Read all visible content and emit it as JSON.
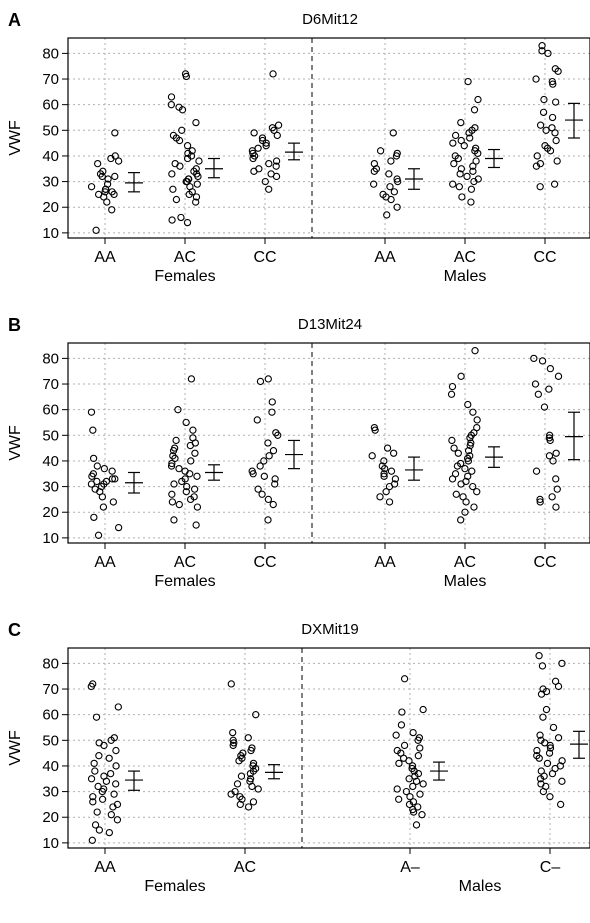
{
  "chart_data": [
    {
      "type": "scatter",
      "panel": "A",
      "title": "D6Mit12",
      "ylabel": "VWF",
      "ylim": [
        10,
        85
      ],
      "yticks": [
        10,
        20,
        30,
        40,
        50,
        60,
        70,
        80
      ],
      "grid": true,
      "groups": [
        {
          "label": "Females",
          "categories": [
            "AA",
            "AC",
            "CC"
          ]
        },
        {
          "label": "Males",
          "categories": [
            "AA",
            "AC",
            "CC"
          ]
        }
      ],
      "series": [
        {
          "group": "Females",
          "category": "AA",
          "mean": 29.5,
          "ci": [
            26,
            33.5
          ],
          "points": [
            11,
            19,
            22,
            24,
            25,
            25,
            26,
            26,
            27,
            27,
            28,
            29,
            31,
            32,
            32,
            33,
            34,
            37,
            38,
            39,
            40,
            49
          ]
        },
        {
          "group": "Females",
          "category": "AC",
          "mean": 35,
          "ci": [
            31.5,
            39
          ],
          "points": [
            14,
            15,
            16,
            22,
            23,
            24,
            25,
            26,
            27,
            28,
            29,
            30,
            30,
            31,
            31,
            32,
            33,
            33,
            34,
            35,
            36,
            37,
            38,
            39,
            40,
            41,
            42,
            44,
            46,
            47,
            48,
            50,
            53,
            58,
            59,
            60,
            63,
            71,
            72
          ]
        },
        {
          "group": "Females",
          "category": "CC",
          "mean": 41.5,
          "ci": [
            38.5,
            45
          ],
          "points": [
            27,
            30,
            32,
            33,
            34,
            35,
            36,
            37,
            38,
            39,
            40,
            41,
            42,
            43,
            44,
            45,
            46,
            47,
            48,
            49,
            50,
            51,
            52,
            72
          ]
        },
        {
          "group": "Males",
          "category": "AA",
          "mean": 31,
          "ci": [
            27,
            35
          ],
          "points": [
            17,
            20,
            23,
            24,
            25,
            26,
            28,
            29,
            30,
            31,
            33,
            34,
            35,
            37,
            38,
            40,
            41,
            42,
            49
          ]
        },
        {
          "group": "Males",
          "category": "AC",
          "mean": 39,
          "ci": [
            35.5,
            42.5
          ],
          "points": [
            22,
            24,
            27,
            28,
            29,
            30,
            31,
            32,
            33,
            34,
            35,
            36,
            37,
            38,
            39,
            40,
            41,
            42,
            43,
            44,
            45,
            46,
            47,
            48,
            49,
            50,
            51,
            53,
            58,
            62,
            69
          ]
        },
        {
          "group": "Males",
          "category": "CC",
          "mean": 54,
          "ci": [
            47,
            60.5
          ],
          "points": [
            28,
            29,
            36,
            37,
            38,
            40,
            42,
            43,
            44,
            46,
            49,
            50,
            51,
            52,
            55,
            57,
            61,
            62,
            68,
            69,
            70,
            73,
            74,
            80,
            81,
            83
          ]
        }
      ]
    },
    {
      "type": "scatter",
      "panel": "B",
      "title": "D13Mit24",
      "ylabel": "VWF",
      "ylim": [
        10,
        85
      ],
      "yticks": [
        10,
        20,
        30,
        40,
        50,
        60,
        70,
        80
      ],
      "grid": true,
      "groups": [
        {
          "label": "Females",
          "categories": [
            "AA",
            "AC",
            "CC"
          ]
        },
        {
          "label": "Males",
          "categories": [
            "AA",
            "AC",
            "CC"
          ]
        }
      ],
      "series": [
        {
          "group": "Females",
          "category": "AA",
          "mean": 31.5,
          "ci": [
            27.5,
            35.5
          ],
          "points": [
            11,
            14,
            18,
            22,
            24,
            26,
            28,
            29,
            30,
            31,
            31,
            32,
            32,
            33,
            33,
            34,
            35,
            36,
            37,
            38,
            41,
            52,
            59
          ]
        },
        {
          "group": "Females",
          "category": "AC",
          "mean": 35.5,
          "ci": [
            32.5,
            38.5
          ],
          "points": [
            15,
            17,
            22,
            23,
            24,
            25,
            26,
            27,
            28,
            29,
            30,
            31,
            32,
            33,
            34,
            35,
            36,
            37,
            38,
            39,
            40,
            41,
            42,
            43,
            44,
            45,
            46,
            47,
            48,
            49,
            52,
            55,
            60,
            72
          ]
        },
        {
          "group": "Females",
          "category": "CC",
          "mean": 42.5,
          "ci": [
            37,
            48
          ],
          "points": [
            17,
            23,
            25,
            27,
            29,
            31,
            33,
            34,
            35,
            36,
            38,
            40,
            42,
            44,
            47,
            50,
            51,
            56,
            59,
            63,
            71,
            72
          ]
        },
        {
          "group": "Males",
          "category": "AA",
          "mean": 36.5,
          "ci": [
            32.5,
            41.5
          ],
          "points": [
            24,
            26,
            28,
            30,
            31,
            33,
            34,
            35,
            36,
            37,
            38,
            40,
            42,
            43,
            45,
            52,
            53
          ]
        },
        {
          "group": "Males",
          "category": "AC",
          "mean": 41.5,
          "ci": [
            37.5,
            45.5
          ],
          "points": [
            17,
            20,
            22,
            24,
            26,
            27,
            28,
            30,
            31,
            32,
            33,
            34,
            35,
            36,
            37,
            38,
            39,
            40,
            41,
            42,
            43,
            44,
            45,
            46,
            47,
            48,
            49,
            50,
            51,
            53,
            56,
            59,
            62,
            66,
            69,
            73,
            83
          ]
        },
        {
          "group": "Males",
          "category": "CC",
          "mean": 49.5,
          "ci": [
            40.5,
            59
          ]
        },
        {
          "group": "Males",
          "category": "CC",
          "mean": 49.5,
          "ci": [
            40.5,
            59
          ],
          "points": [
            22,
            24,
            25,
            26,
            29,
            33,
            36,
            40,
            42,
            43,
            48,
            49,
            50,
            61,
            66,
            68,
            70,
            73,
            76,
            79,
            80
          ]
        }
      ]
    },
    {
      "type": "scatter",
      "panel": "C",
      "title": "DXMit19",
      "ylabel": "VWF",
      "ylim": [
        10,
        85
      ],
      "yticks": [
        10,
        20,
        30,
        40,
        50,
        60,
        70,
        80
      ],
      "grid": true,
      "groups": [
        {
          "label": "Females",
          "categories": [
            "AA",
            "AC"
          ]
        },
        {
          "label": "Males",
          "categories": [
            "A–",
            "C–"
          ]
        }
      ],
      "series": [
        {
          "group": "Females",
          "category": "AA",
          "mean": 34.5,
          "ci": [
            30.5,
            38
          ],
          "points": [
            11,
            14,
            15,
            17,
            19,
            21,
            22,
            24,
            25,
            26,
            27,
            28,
            29,
            30,
            31,
            32,
            33,
            34,
            35,
            36,
            37,
            38,
            40,
            41,
            43,
            44,
            46,
            48,
            49,
            50,
            51,
            59,
            63,
            71,
            72
          ]
        },
        {
          "group": "Females",
          "category": "AC",
          "mean": 37.5,
          "ci": [
            35,
            40.5
          ],
          "points": [
            24,
            25,
            26,
            27,
            28,
            29,
            30,
            31,
            32,
            33,
            34,
            35,
            36,
            37,
            38,
            39,
            40,
            41,
            42,
            43,
            44,
            45,
            46,
            47,
            48,
            49,
            50,
            51,
            53,
            60,
            72
          ]
        },
        {
          "group": "Males",
          "category": "A–",
          "mean": 38,
          "ci": [
            34.5,
            41.5
          ],
          "points": [
            17,
            21,
            22,
            23,
            24,
            25,
            26,
            27,
            28,
            29,
            30,
            31,
            32,
            33,
            34,
            35,
            36,
            37,
            38,
            39,
            40,
            41,
            42,
            43,
            44,
            45,
            46,
            47,
            48,
            50,
            51,
            52,
            53,
            56,
            61,
            62,
            74
          ]
        },
        {
          "group": "Males",
          "category": "C–",
          "mean": 48.5,
          "ci": [
            43,
            53.5
          ],
          "points": [
            25,
            28,
            30,
            32,
            33,
            34,
            35,
            36,
            37,
            38,
            39,
            40,
            41,
            42,
            43,
            44,
            45,
            46,
            47,
            48,
            49,
            50,
            51,
            52,
            55,
            59,
            62,
            68,
            69,
            70,
            71,
            73,
            79,
            80,
            83
          ]
        }
      ]
    }
  ],
  "panels": [
    {
      "letter": "A",
      "title": "D6Mit12"
    },
    {
      "letter": "B",
      "title": "D13Mit24"
    },
    {
      "letter": "C",
      "title": "DXMit19"
    }
  ],
  "colors": {
    "points": "#000000",
    "grid": "#b0b0b0",
    "axis": "#000000",
    "background": "#ffffff"
  }
}
